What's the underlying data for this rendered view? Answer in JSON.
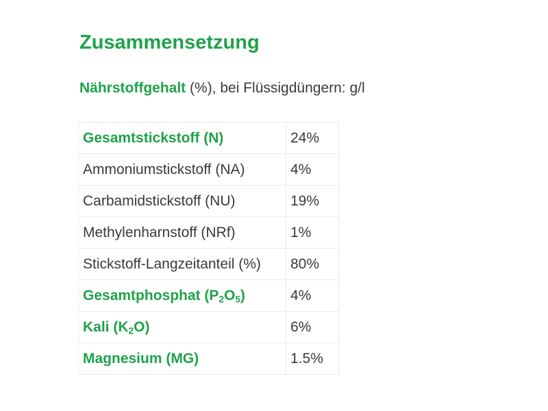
{
  "heading": "Zusammensetzung",
  "subtitle": {
    "strong": "Nährstoffgehalt",
    "rest": " (%), bei Flüssigdüngern: g/l"
  },
  "colors": {
    "accent": "#1fa24a",
    "text": "#3a3a3a",
    "border": "#e9e9e9"
  },
  "rows": [
    {
      "name": "Gesamtstickstoff (N)",
      "value": "24%",
      "main": true
    },
    {
      "name": "Ammoniumstickstoff (NA)",
      "value": "4%",
      "main": false
    },
    {
      "name": "Carbamidstickstoff (NU)",
      "value": "19%",
      "main": false
    },
    {
      "name": "Methylenharnstoff (NRf)",
      "value": "1%",
      "main": false
    },
    {
      "name": "Stickstoff-Langzeitanteil (%)",
      "value": "80%",
      "main": false
    },
    {
      "name_parts": [
        "Gesamtphosphat (P",
        "2",
        "O",
        "5",
        ")"
      ],
      "value": "4%",
      "main": true
    },
    {
      "name_parts": [
        "Kali (K",
        "2",
        "O)"
      ],
      "value": "6%",
      "main": true
    },
    {
      "name": "Magnesium (MG)",
      "value": "1.5%",
      "main": true
    }
  ]
}
